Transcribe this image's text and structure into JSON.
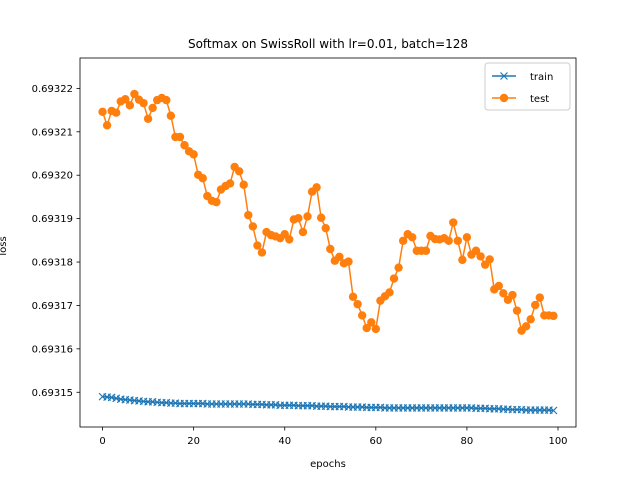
{
  "chart_data": {
    "type": "line",
    "title": "Softmax on SwissRoll with lr=0.01, batch=128",
    "xlabel": "epochs",
    "ylabel": "loss",
    "xlim": [
      -4.95,
      103.95
    ],
    "ylim": [
      0.693142,
      0.693227
    ],
    "xticks": [
      0,
      20,
      40,
      60,
      80,
      100
    ],
    "yticks": [
      0.69315,
      0.69316,
      0.69317,
      0.69318,
      0.69319,
      0.6932,
      0.69321,
      0.69322
    ],
    "ytick_labels": [
      "0.69315",
      "0.69316",
      "0.69317",
      "0.69318",
      "0.69319",
      "0.69320",
      "0.69321",
      "0.69322"
    ],
    "legend_position": "top-right",
    "series": [
      {
        "name": "train",
        "color": "#1f77b4",
        "marker": "x",
        "values": [
          0.693149,
          0.6931489,
          0.6931488,
          0.6931486,
          0.6931484,
          0.6931483,
          0.6931482,
          0.6931481,
          0.693148,
          0.6931479,
          0.6931478,
          0.6931478,
          0.6931477,
          0.6931476,
          0.6931476,
          0.6931475,
          0.6931475,
          0.6931474,
          0.6931474,
          0.6931474,
          0.6931474,
          0.6931474,
          0.6931474,
          0.6931473,
          0.6931473,
          0.6931473,
          0.6931473,
          0.6931473,
          0.6931473,
          0.6931473,
          0.6931473,
          0.6931473,
          0.6931473,
          0.6931472,
          0.6931472,
          0.6931472,
          0.6931471,
          0.6931471,
          0.6931471,
          0.693147,
          0.693147,
          0.693147,
          0.693147,
          0.6931469,
          0.6931469,
          0.6931469,
          0.6931469,
          0.6931468,
          0.6931468,
          0.6931468,
          0.6931467,
          0.6931467,
          0.6931467,
          0.6931467,
          0.6931466,
          0.6931466,
          0.6931466,
          0.6931466,
          0.6931465,
          0.6931465,
          0.6931465,
          0.6931465,
          0.6931464,
          0.6931464,
          0.6931464,
          0.6931464,
          0.6931464,
          0.6931464,
          0.6931464,
          0.6931464,
          0.6931464,
          0.6931464,
          0.6931464,
          0.6931464,
          0.6931464,
          0.6931464,
          0.6931464,
          0.6931464,
          0.6931464,
          0.6931464,
          0.6931464,
          0.6931464,
          0.6931463,
          0.6931463,
          0.6931463,
          0.6931462,
          0.6931462,
          0.6931462,
          0.6931461,
          0.6931461,
          0.693146,
          0.693146,
          0.693146,
          0.6931459,
          0.6931459,
          0.6931459,
          0.6931459,
          0.6931459,
          0.6931459,
          0.6931458
        ]
      },
      {
        "name": "test",
        "color": "#ff7f0e",
        "marker": "o",
        "values": [
          0.6932146,
          0.6932115,
          0.6932148,
          0.6932144,
          0.693217,
          0.6932175,
          0.6932161,
          0.6932187,
          0.6932174,
          0.6932166,
          0.693213,
          0.6932155,
          0.6932173,
          0.6932178,
          0.6932173,
          0.6932137,
          0.6932088,
          0.6932088,
          0.6932069,
          0.6932055,
          0.6932048,
          0.6932001,
          0.6931993,
          0.6931952,
          0.6931941,
          0.6931938,
          0.6931967,
          0.6931975,
          0.6931981,
          0.6932019,
          0.6932009,
          0.6931978,
          0.6931908,
          0.6931882,
          0.6931838,
          0.6931822,
          0.6931869,
          0.6931862,
          0.6931859,
          0.6931855,
          0.6931864,
          0.6931852,
          0.6931898,
          0.6931901,
          0.6931869,
          0.6931905,
          0.6931962,
          0.6931972,
          0.6931902,
          0.6931878,
          0.693183,
          0.6931803,
          0.6931812,
          0.6931797,
          0.6931801,
          0.693172,
          0.6931703,
          0.6931677,
          0.6931648,
          0.6931661,
          0.6931646,
          0.6931711,
          0.6931721,
          0.693173,
          0.6931762,
          0.6931787,
          0.6931849,
          0.6931864,
          0.6931857,
          0.6931826,
          0.6931826,
          0.6931826,
          0.693186,
          0.6931853,
          0.6931852,
          0.6931855,
          0.6931849,
          0.6931891,
          0.6931849,
          0.6931805,
          0.6931857,
          0.6931817,
          0.6931826,
          0.6931813,
          0.6931794,
          0.6931806,
          0.6931737,
          0.6931745,
          0.6931728,
          0.6931713,
          0.6931724,
          0.6931688,
          0.6931642,
          0.6931652,
          0.6931668,
          0.6931701,
          0.6931718,
          0.6931677,
          0.6931677,
          0.6931676
        ]
      }
    ]
  }
}
